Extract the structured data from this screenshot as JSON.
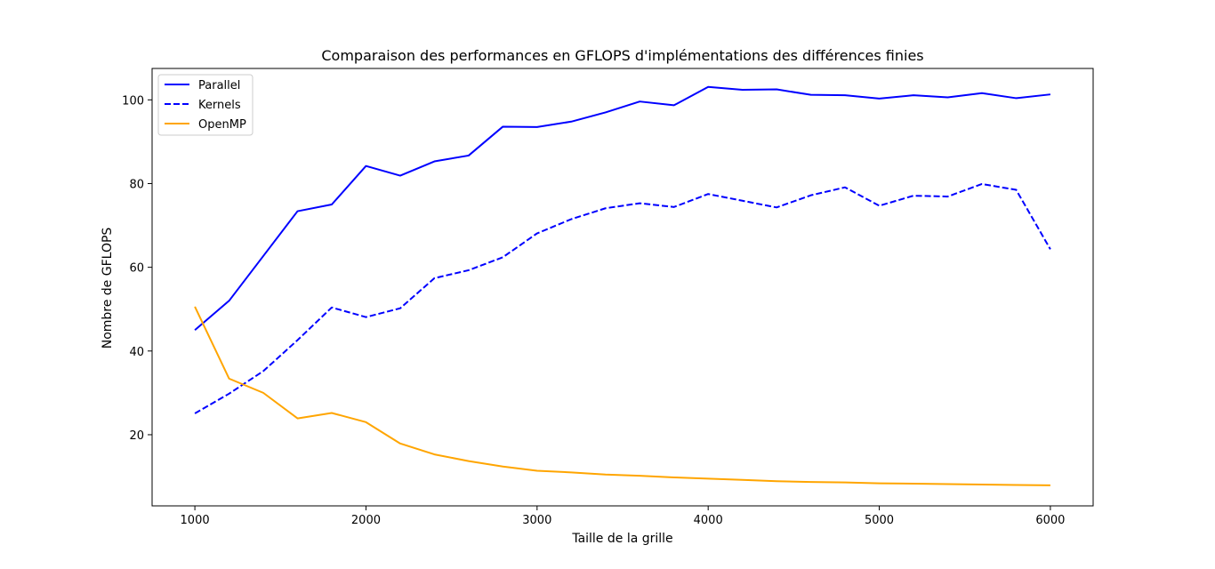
{
  "chart_data": {
    "type": "line",
    "title": "Comparaison des performances en GFLOPS d'implémentations des différences finies",
    "xlabel": "Taille de la grille",
    "ylabel": "Nombre de GFLOPS",
    "x": [
      1000,
      1200,
      1400,
      1600,
      1800,
      2000,
      2200,
      2400,
      2600,
      2800,
      3000,
      3200,
      3400,
      3600,
      3800,
      4000,
      4200,
      4400,
      4600,
      4800,
      5000,
      5200,
      5400,
      5600,
      5800,
      6000
    ],
    "xlim": [
      750,
      6250
    ],
    "ylim": [
      3,
      107.5
    ],
    "xticks": [
      1000,
      2000,
      3000,
      4000,
      5000,
      6000
    ],
    "yticks": [
      20,
      40,
      60,
      80,
      100
    ],
    "grid": false,
    "legend_position": "upper left",
    "series": [
      {
        "name": "Parallel",
        "color": "#0000ff",
        "style": "solid",
        "values": [
          45.0,
          52.0,
          62.7,
          73.4,
          75.0,
          84.2,
          81.9,
          85.3,
          86.7,
          93.6,
          93.5,
          94.8,
          97.0,
          99.6,
          98.7,
          103.1,
          102.4,
          102.5,
          101.2,
          101.1,
          100.3,
          101.1,
          100.6,
          101.6,
          100.4,
          101.3
        ]
      },
      {
        "name": "Kernels",
        "color": "#0000ff",
        "style": "dashed",
        "values": [
          25.1,
          29.8,
          35.2,
          42.6,
          50.4,
          48.1,
          50.2,
          57.4,
          59.3,
          62.4,
          68.1,
          71.5,
          74.1,
          75.3,
          74.4,
          77.5,
          75.9,
          74.3,
          77.2,
          79.1,
          74.7,
          77.1,
          76.9,
          79.9,
          78.5,
          64.3
        ]
      },
      {
        "name": "OpenMP",
        "color": "#ffa500",
        "style": "solid",
        "values": [
          50.6,
          33.4,
          30.0,
          23.9,
          25.2,
          23.0,
          17.9,
          15.3,
          13.7,
          12.4,
          11.4,
          11.0,
          10.5,
          10.2,
          9.8,
          9.5,
          9.2,
          8.9,
          8.7,
          8.6,
          8.4,
          8.3,
          8.2,
          8.1,
          8.0,
          7.9
        ]
      }
    ]
  }
}
